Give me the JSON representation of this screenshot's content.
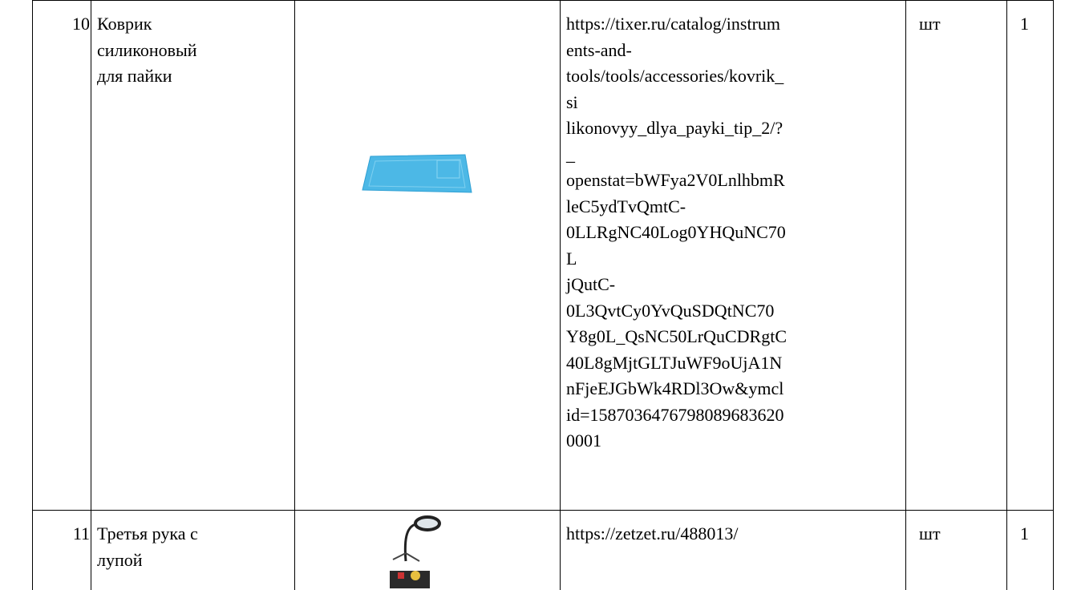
{
  "table": {
    "rows": [
      {
        "number": "10",
        "name": [
          "Коврик",
          "силиконовый",
          "для пайки"
        ],
        "link": [
          "https://tixer.ru/catalog/instrum",
          "ents-and-",
          "tools/tools/accessories/kovrik_",
          "si",
          "likonovyy_dlya_payki_tip_2/?",
          "_",
          "openstat=bWFya2V0LnlhbmR",
          "leC5ydTvQmtC-",
          "0LLRgNC40Log0YHQuNC70",
          "L",
          "jQutC-",
          "0L3QvtCy0YvQuSDQtNC70",
          "Y8g0L_QsNC50LrQuCDRgtC",
          "40L8gMjtGLTJuWF9oUjA1N",
          "nFjeEJGbWk4RDl3Ow&ymcl",
          "id=15870364767980896836​20",
          "0001"
        ],
        "unit": "шт",
        "quantity": "1"
      },
      {
        "number": "11",
        "name": [
          "Третья рука с",
          "лупой"
        ],
        "link": [
          "https://zetzet.ru/488013/"
        ],
        "unit": "шт",
        "quantity": "1"
      }
    ]
  }
}
